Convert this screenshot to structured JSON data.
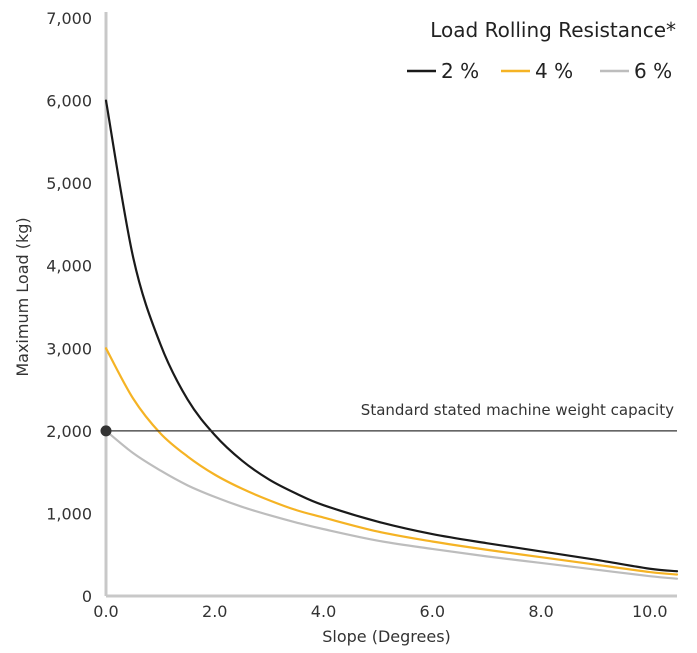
{
  "chart_data": {
    "type": "line",
    "title": "",
    "xlabel": "Slope (Degrees)",
    "ylabel": "Maximum Load (kg)",
    "xlim": [
      0,
      10.5
    ],
    "ylim": [
      0,
      7000
    ],
    "x_ticks": [
      0,
      2,
      4,
      6,
      8,
      10
    ],
    "x_tick_labels": [
      "0.0",
      "2.0",
      "4.0",
      "6.0",
      "8.0",
      "10.0"
    ],
    "y_ticks": [
      0,
      1000,
      2000,
      3000,
      4000,
      5000,
      6000,
      7000
    ],
    "y_tick_labels": [
      "0",
      "1,000",
      "2,000",
      "3,000",
      "4,000",
      "5,000",
      "6,000",
      "7,000"
    ],
    "grid": false,
    "legend": {
      "title": "Load Rolling Resistance*",
      "placement": "top-right"
    },
    "x": [
      0,
      0.5,
      1,
      1.5,
      2,
      2.5,
      3,
      3.5,
      4,
      5,
      6,
      7,
      8,
      9,
      10,
      10.5
    ],
    "series": [
      {
        "name": "2 %",
        "color": "#1a1a1a",
        "values": [
          6000,
          4100,
          3050,
          2380,
          1950,
          1640,
          1410,
          1240,
          1100,
          900,
          750,
          640,
          540,
          440,
          330,
          300
        ]
      },
      {
        "name": "4 %",
        "color": "#f5b324",
        "values": [
          3000,
          2390,
          1970,
          1690,
          1470,
          1300,
          1160,
          1040,
          950,
          780,
          660,
          560,
          470,
          380,
          290,
          260
        ]
      },
      {
        "name": "6 %",
        "color": "#bdbdbd",
        "values": [
          2000,
          1730,
          1520,
          1340,
          1200,
          1080,
          980,
          890,
          810,
          670,
          570,
          480,
          400,
          320,
          240,
          210
        ]
      }
    ],
    "reference_line": {
      "y": 2000,
      "label": "Standard stated machine weight capacity",
      "color": "#333333"
    },
    "marker": {
      "x": 0,
      "y": 2000,
      "color": "#333333"
    }
  }
}
